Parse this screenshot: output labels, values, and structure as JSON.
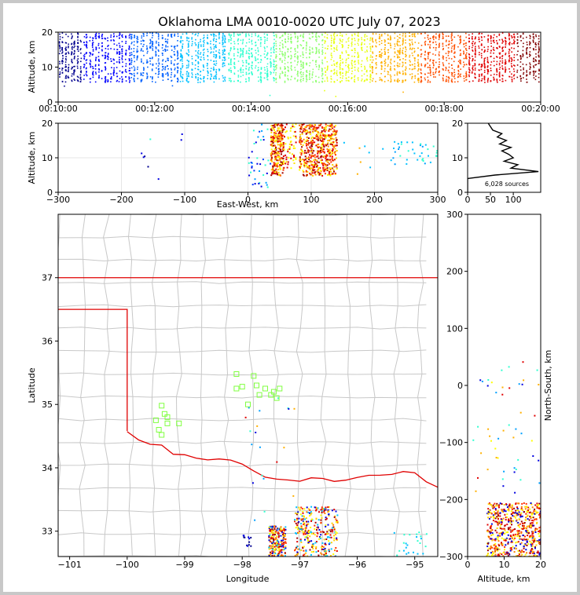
{
  "chart_data": [
    {
      "id": "time-height",
      "type": "scatter",
      "title": "Oklahoma LMA 0010-0020 UTC July 07, 2023",
      "xlabel": "",
      "ylabel": "Altitude, km",
      "ylim": [
        0,
        20
      ],
      "ytick_labels": [
        "0",
        "10",
        "20"
      ],
      "xtick_labels": [
        "00:10:00",
        "00:12:00",
        "00:14:00",
        "00:16:00",
        "00:18:00",
        "00:20:00"
      ],
      "x_range_minutes": [
        10,
        20
      ],
      "color_scale": "jet (blue early to dark red late)",
      "series_summary": [
        {
          "x_minutes": [
            10.0,
            10.8
          ],
          "y_range": [
            6,
            20
          ],
          "color": "#0000d0"
        },
        {
          "x_minutes": [
            10.8,
            12.0
          ],
          "y_range": [
            6,
            20
          ],
          "color": "#0040ff"
        },
        {
          "x_minutes": [
            12.0,
            13.5
          ],
          "y_range": [
            7,
            20
          ],
          "color": "#00a8ff"
        },
        {
          "x_minutes": [
            13.5,
            15.0
          ],
          "y_range": [
            7,
            20
          ],
          "color": "#30f0d0"
        },
        {
          "x_minutes": [
            15.0,
            16.5
          ],
          "y_range": [
            7,
            20
          ],
          "color": "#b0ff40"
        },
        {
          "x_minutes": [
            16.5,
            17.5
          ],
          "y_range": [
            6,
            20
          ],
          "color": "#ffd000"
        },
        {
          "x_minutes": [
            17.5,
            18.5
          ],
          "y_range": [
            6,
            20
          ],
          "color": "#ff6000"
        },
        {
          "x_minutes": [
            18.5,
            20.0
          ],
          "y_range": [
            6,
            20
          ],
          "color": "#b00000"
        }
      ]
    },
    {
      "id": "east-west-altitude",
      "type": "scatter",
      "xlabel": "East-West, km",
      "ylabel": "Altitude, km",
      "xlim": [
        -300,
        300
      ],
      "ylim": [
        0,
        20
      ],
      "xtick_labels": [
        "−300",
        "−200",
        "−100",
        "0",
        "100",
        "200",
        "300"
      ],
      "ytick_labels": [
        "0",
        "10",
        "20"
      ],
      "grid": true,
      "clusters": [
        {
          "x_range": [
            35,
            55
          ],
          "y_range": [
            5,
            20
          ],
          "color": "mixed red/yellow"
        },
        {
          "x_range": [
            80,
            140
          ],
          "y_range": [
            5,
            20
          ],
          "color": "mixed red/orange"
        },
        {
          "x_range": [
            220,
            300
          ],
          "y_range": [
            7,
            15
          ],
          "color": "cyan"
        }
      ]
    },
    {
      "id": "altitude-histogram",
      "type": "line",
      "xlim": [
        0,
        160
      ],
      "ylim": [
        0,
        20
      ],
      "xtick_labels": [
        "0",
        "50",
        "100"
      ],
      "ytick_labels": [
        "0",
        "10",
        "20"
      ],
      "annotation": "6,028 sources",
      "profile": [
        [
          0,
          0
        ],
        [
          0,
          4
        ],
        [
          60,
          5
        ],
        [
          155,
          6
        ],
        [
          95,
          7
        ],
        [
          110,
          8
        ],
        [
          80,
          9
        ],
        [
          100,
          10
        ],
        [
          90,
          11
        ],
        [
          75,
          12
        ],
        [
          95,
          13
        ],
        [
          70,
          14
        ],
        [
          85,
          15
        ],
        [
          65,
          16
        ],
        [
          75,
          17
        ],
        [
          55,
          18
        ],
        [
          50,
          19
        ],
        [
          45,
          20
        ]
      ]
    },
    {
      "id": "plan-view",
      "type": "scatter",
      "xlabel": "Longitude",
      "ylabel": "Latitude",
      "xlim": [
        -101.2,
        -94.6
      ],
      "ylim": [
        32.6,
        38.0
      ],
      "xtick_labels": [
        "−101",
        "−100",
        "−99",
        "−98",
        "−97",
        "−96",
        "−95"
      ],
      "ytick_labels": [
        "33",
        "34",
        "35",
        "36",
        "37"
      ],
      "stations_color": "#80ff40",
      "station_count": 20,
      "clusters": [
        {
          "lon_range": [
            -97.6,
            -97.2
          ],
          "lat_range": [
            32.6,
            33.1
          ],
          "color": "mixed"
        },
        {
          "lon_range": [
            -97.1,
            -96.3
          ],
          "lat_range": [
            32.6,
            33.4
          ],
          "color": "mixed"
        }
      ]
    },
    {
      "id": "north-south-altitude",
      "type": "scatter",
      "xlabel": "Altitude, km",
      "ylabel": "North-South, km",
      "xlim": [
        0,
        20
      ],
      "ylim": [
        -300,
        300
      ],
      "xtick_labels": [
        "0",
        "10",
        "20"
      ],
      "ytick_labels": [
        "−300",
        "−200",
        "−100",
        "0",
        "100",
        "200",
        "300"
      ],
      "clusters": [
        {
          "x_range": [
            5,
            20
          ],
          "y_range": [
            -300,
            -205
          ],
          "color": "mixed red/orange"
        }
      ]
    }
  ],
  "colors": {
    "border_red": "#e00000",
    "county_lines": "#c8c8c8",
    "station_green": "#80ff40"
  }
}
